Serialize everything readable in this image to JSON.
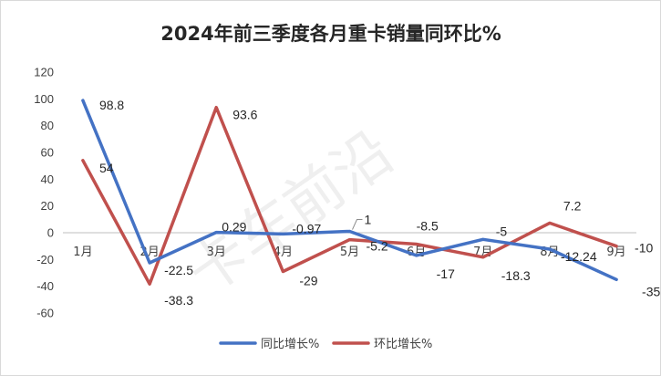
{
  "chart_data": {
    "type": "line",
    "title": "2024年前三季度各月重卡销量同环比%",
    "categories": [
      "1月",
      "2月",
      "3月",
      "4月",
      "5月",
      "6月",
      "7月",
      "8月",
      "9月"
    ],
    "series": [
      {
        "name": "同比增长%",
        "color": "#4472c4",
        "values": [
          98.8,
          -22.5,
          0.29,
          -0.97,
          1,
          -17,
          -5,
          -12.24,
          -35
        ],
        "labels": [
          "98.8",
          "-22.5",
          "0.29",
          "-0.97",
          "1",
          "-17",
          "-5",
          "-12.24",
          "-35"
        ]
      },
      {
        "name": "环比增长%",
        "color": "#c0504d",
        "values": [
          54,
          -38.3,
          93.6,
          -29,
          -5.2,
          -8.5,
          -18.3,
          7.2,
          -10
        ],
        "labels": [
          "54",
          "-38.3",
          "93.6",
          "-29",
          "-5.2",
          "-8.5",
          "-18.3",
          "7.2",
          "-10"
        ]
      }
    ],
    "ylim": [
      -60,
      120
    ],
    "yticks": [
      -60,
      -40,
      -20,
      0,
      20,
      40,
      60,
      80,
      100,
      120
    ],
    "grid": false,
    "legend_position": "bottom",
    "watermark": "卡车前沿"
  }
}
